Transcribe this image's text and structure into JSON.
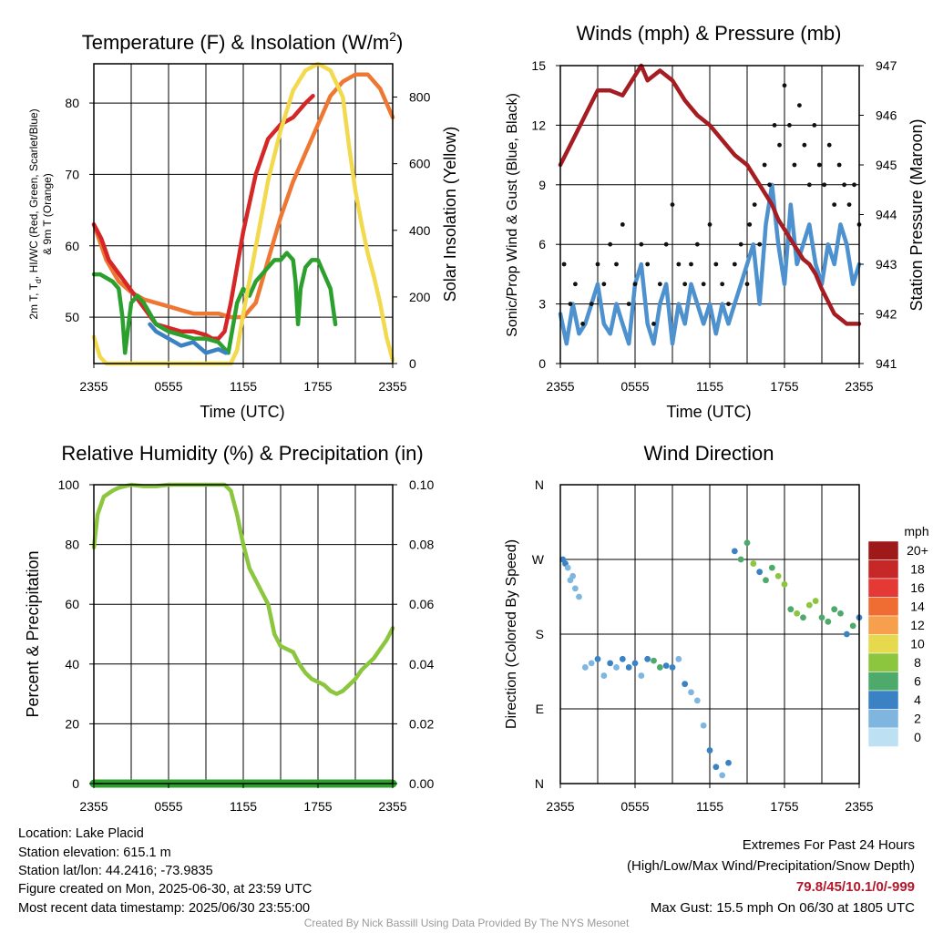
{
  "chart_data": [
    {
      "type": "line",
      "title_main": "Temperature (F) & Insolation (W/m",
      "title_sup": "2",
      "title_end": ")",
      "xlabel": "Time (UTC)",
      "ylabel_left_1": "2m T, T",
      "ylabel_left_sub": "d",
      "ylabel_left_2": ", HI/WC (Red, Green, Scarlet/Blue)",
      "ylabel_left_3": "& 9m T (Orange)",
      "ylabel_right": "Solar Insolation (Yellow)",
      "x_ticks": [
        "2355",
        "0555",
        "1155",
        "1755",
        "2355"
      ],
      "y_ticks": [
        "50",
        "60",
        "70",
        "80"
      ],
      "y_right_ticks": [
        "0",
        "200",
        "400",
        "600",
        "800"
      ],
      "ylim": [
        43.5,
        85.5
      ],
      "y_right_lim": [
        0,
        900
      ],
      "grid": true,
      "series": [
        {
          "color": "#ee7733",
          "x": [
            0,
            1,
            2,
            3,
            4,
            5,
            6,
            7,
            8,
            9,
            10,
            11,
            12,
            13,
            14,
            15,
            16,
            17,
            18,
            19,
            20,
            21,
            22,
            23,
            24
          ],
          "values": [
            63,
            58,
            55,
            53.5,
            52.5,
            52,
            51.5,
            51,
            50.5,
            50.5,
            50.5,
            50,
            50,
            52,
            58,
            64,
            69,
            73,
            77,
            81,
            83,
            84,
            84,
            82,
            78
          ]
        },
        {
          "color": "#d62728",
          "x": [
            0,
            0.6,
            1.2,
            5,
            6,
            7,
            8,
            9,
            9.5,
            10,
            10.5,
            11,
            12,
            13,
            14,
            15,
            16,
            17,
            17.6
          ],
          "values": [
            63,
            61,
            58,
            49,
            48.5,
            48,
            48,
            47.5,
            47,
            47,
            48,
            52,
            62,
            70,
            75,
            77,
            78,
            80,
            81
          ]
        },
        {
          "color": "#2ca02c",
          "x": [
            0,
            0.5,
            1,
            1.5,
            2,
            2.3,
            2.5,
            3,
            3.5,
            4,
            5,
            6,
            7,
            8,
            9,
            10,
            10.8,
            11,
            11.5,
            12,
            12.5,
            13,
            13.5,
            14,
            14.5,
            15,
            15.5,
            16,
            16.2,
            16.4,
            16.6,
            17,
            17.5,
            18,
            18.5,
            19,
            19.4
          ],
          "values": [
            56,
            56,
            55.5,
            55,
            54,
            50,
            45,
            52,
            53,
            52,
            49,
            48,
            47.5,
            47,
            47,
            46.5,
            45,
            47,
            52,
            54,
            53,
            55,
            56,
            57,
            58,
            58,
            59,
            58,
            55,
            49,
            54,
            57,
            58,
            58,
            56,
            54,
            49
          ]
        },
        {
          "color": "#3b82c4",
          "x": [
            4.5,
            5,
            6,
            7,
            8,
            9,
            10,
            10.6
          ],
          "values": [
            49,
            48,
            47,
            46,
            46.5,
            45,
            45.5,
            45
          ]
        },
        {
          "color": "#f2d94e",
          "axis": "right",
          "x": [
            0,
            0.5,
            1,
            2,
            3,
            4,
            5,
            6,
            7,
            8,
            9,
            10,
            11,
            11.5,
            12,
            13,
            14,
            15,
            16,
            17,
            18,
            19,
            20,
            20.5,
            21,
            21.5,
            22,
            22.5,
            23,
            23.5,
            24
          ],
          "values": [
            80,
            20,
            0,
            0,
            0,
            0,
            0,
            0,
            0,
            0,
            0,
            0,
            0,
            40,
            150,
            350,
            550,
            700,
            820,
            880,
            900,
            880,
            800,
            650,
            520,
            420,
            330,
            260,
            180,
            80,
            10
          ]
        }
      ]
    },
    {
      "type": "line",
      "title": "Winds (mph) & Pressure (mb)",
      "xlabel": "Time (UTC)",
      "ylabel_left": "Sonic/Prop Wind & Gust (Blue, Black)",
      "ylabel_right": "Station Pressure (Maroon)",
      "x_ticks": [
        "2355",
        "0555",
        "1155",
        "1755",
        "2355"
      ],
      "y_ticks": [
        "0",
        "3",
        "6",
        "9",
        "12",
        "15"
      ],
      "y_right_ticks": [
        "941",
        "942",
        "943",
        "944",
        "945",
        "946",
        "947"
      ],
      "ylim": [
        0,
        15
      ],
      "y_right_lim": [
        941,
        947
      ],
      "grid": true,
      "series": [
        {
          "color": "#4d91cf",
          "x": [
            0,
            0.5,
            1,
            1.5,
            2,
            2.5,
            3,
            3.5,
            4,
            4.5,
            5,
            5.5,
            6,
            6.5,
            7,
            7.5,
            8,
            8.5,
            9,
            9.5,
            10,
            10.5,
            11,
            11.5,
            12,
            12.5,
            13,
            13.5,
            14,
            14.5,
            15,
            15.5,
            16,
            16.5,
            17,
            17.5,
            18,
            18.5,
            19,
            19.5,
            20,
            20.5,
            21,
            21.5,
            22,
            22.5,
            23,
            23.5,
            24
          ],
          "values": [
            2.5,
            1,
            3,
            1.5,
            2,
            3,
            4,
            2,
            1.5,
            3,
            2,
            1,
            4,
            5,
            2,
            1,
            3,
            4,
            1,
            3,
            2,
            4,
            3,
            2,
            3,
            1.5,
            3,
            2,
            3,
            4,
            5,
            6,
            3,
            7,
            9,
            6,
            4,
            8,
            5,
            6,
            7,
            5,
            4,
            6,
            5,
            7,
            6,
            4,
            5
          ]
        },
        {
          "color": "#111111",
          "type": "scatter",
          "x": [
            0.3,
            0.8,
            1.2,
            1.8,
            2.5,
            3,
            3.5,
            4,
            4.5,
            5,
            5.5,
            6,
            6.5,
            7,
            7.5,
            8,
            8.5,
            9,
            9.5,
            10,
            10.5,
            11,
            11.5,
            12,
            12.5,
            13,
            13.5,
            14,
            14.5,
            15,
            15.2,
            15.6,
            16,
            16.4,
            16.8,
            17.2,
            17.6,
            18,
            18.4,
            18.8,
            19.2,
            19.6,
            20,
            20.4,
            20.8,
            21.2,
            21.6,
            22,
            22.4,
            22.8,
            23.2,
            23.6,
            24
          ],
          "values": [
            5,
            3,
            4,
            2,
            3,
            5,
            4,
            6,
            5,
            7,
            3,
            4,
            6,
            5,
            2,
            4,
            6,
            8,
            5,
            4,
            5,
            6,
            4,
            7,
            5,
            4,
            3,
            5,
            6,
            4,
            7,
            8,
            6,
            10,
            9,
            12,
            11,
            14,
            12,
            10,
            13,
            11,
            9,
            12,
            10,
            9,
            11,
            8,
            10,
            9,
            8,
            9,
            7
          ]
        },
        {
          "color": "#a51d22",
          "axis": "right",
          "x": [
            0,
            1,
            2,
            3,
            4,
            5,
            6,
            6.5,
            7,
            8,
            9,
            10,
            11,
            12,
            13,
            14,
            15,
            16,
            17,
            17.5,
            18,
            18.5,
            19,
            19.5,
            20,
            20.5,
            21,
            22,
            23,
            24
          ],
          "values": [
            945,
            945.5,
            946,
            946.5,
            946.5,
            946.4,
            946.8,
            947,
            946.7,
            946.9,
            946.7,
            946.3,
            946,
            945.8,
            945.5,
            945.2,
            945,
            944.6,
            944.2,
            943.9,
            943.7,
            943.5,
            943.3,
            943.1,
            943,
            942.8,
            942.5,
            942,
            941.8,
            941.8
          ]
        }
      ]
    },
    {
      "type": "line",
      "title": "Relative Humidity (%) & Precipitation (in)",
      "ylabel_left": "Percent & Precipitation",
      "x_ticks": [
        "2355",
        "0555",
        "1155",
        "1755",
        "2355"
      ],
      "y_ticks": [
        "0",
        "20",
        "40",
        "60",
        "80",
        "100"
      ],
      "y_right_ticks": [
        "0.00",
        "0.02",
        "0.04",
        "0.06",
        "0.08",
        "0.10"
      ],
      "ylim": [
        0,
        100
      ],
      "y_right_lim": [
        0,
        0.1
      ],
      "grid": true,
      "series": [
        {
          "color": "#8cc63f",
          "x": [
            0,
            0.3,
            0.8,
            1.5,
            2,
            3,
            4,
            5,
            6,
            7,
            8,
            9,
            10,
            10.5,
            11,
            11.5,
            12,
            12.5,
            13,
            13.5,
            14,
            14.5,
            15,
            15.5,
            16,
            16.5,
            17,
            17.5,
            18,
            18.5,
            19,
            19.5,
            20,
            20.5,
            21,
            21.5,
            22,
            22.5,
            23,
            23.5,
            24
          ],
          "values": [
            79,
            90,
            96,
            98,
            99,
            100,
            99.5,
            99.5,
            100,
            100,
            100,
            100,
            100,
            100,
            98,
            90,
            80,
            72,
            68,
            64,
            60,
            50,
            46,
            45,
            44,
            40,
            37,
            35,
            34,
            33,
            31,
            30,
            31,
            33,
            35,
            38,
            40,
            42,
            45,
            48,
            52
          ]
        },
        {
          "color": "#2ca02c",
          "axis": "right",
          "x": [
            0,
            24
          ],
          "values": [
            0,
            0
          ]
        }
      ]
    },
    {
      "type": "scatter",
      "title": "Wind Direction",
      "ylabel_left": "Direction (Colored By Speed)",
      "x_ticks": [
        "2355",
        "0555",
        "1155",
        "1755",
        "2355"
      ],
      "y_ticks": [
        "N",
        "E",
        "S",
        "W",
        "N"
      ],
      "ylim": [
        0,
        360
      ],
      "grid": true,
      "legend": {
        "title": "mph",
        "labels": [
          "20+",
          "18",
          "16",
          "14",
          "12",
          "10",
          "8",
          "6",
          "4",
          "2",
          "0"
        ],
        "colors": [
          "#9e1a1a",
          "#c62828",
          "#e53935",
          "#ef6c33",
          "#f6a04d",
          "#e6d94e",
          "#8cc63f",
          "#4daa6a",
          "#3b82c4",
          "#7fb6e0",
          "#bde0f3"
        ]
      },
      "series": [
        {
          "x": [
            0.2,
            0.4,
            0.6,
            0.8,
            1,
            1.2,
            1.5,
            2,
            2.5,
            3,
            3.5,
            4,
            4.5,
            5,
            5.5,
            6,
            6.5,
            7,
            7.5,
            8,
            8.5,
            9,
            9.5,
            10,
            10.5,
            11,
            11.5,
            12,
            12.5,
            13,
            13.5,
            14,
            14.5,
            15,
            15.5,
            16,
            16.5,
            17,
            17.5,
            18,
            18.5,
            19,
            19.5,
            20,
            20.5,
            21,
            21.5,
            22,
            22.5,
            23,
            23.5,
            24
          ],
          "values": [
            270,
            265,
            260,
            245,
            250,
            235,
            225,
            140,
            145,
            150,
            130,
            145,
            140,
            150,
            140,
            145,
            130,
            150,
            148,
            140,
            142,
            140,
            150,
            120,
            110,
            100,
            70,
            40,
            20,
            10,
            25,
            280,
            270,
            290,
            265,
            255,
            245,
            260,
            250,
            240,
            210,
            205,
            200,
            215,
            220,
            200,
            195,
            210,
            205,
            180,
            190,
            200
          ],
          "speeds": [
            4,
            3,
            2,
            2,
            2,
            1,
            1,
            2,
            2,
            3,
            2,
            3,
            2,
            3,
            4,
            3,
            2,
            4,
            5,
            6,
            3,
            4,
            2,
            3,
            2,
            2,
            2,
            3,
            4,
            2,
            3,
            4,
            5,
            6,
            7,
            4,
            5,
            6,
            7,
            8,
            6,
            7,
            6,
            8,
            7,
            6,
            5,
            6,
            5,
            4,
            5,
            4
          ]
        }
      ]
    }
  ],
  "info": {
    "location": "Location: Lake Placid",
    "elevation": "Station elevation: 615.1 m",
    "latlon": "Station lat/lon: 44.2416; -73.9835",
    "created": "Figure created on Mon, 2025-06-30, at 23:59 UTC",
    "recent": "Most recent data timestamp: 2025/06/30 23:55:00"
  },
  "extremes": {
    "heading": "Extremes For Past 24 Hours",
    "legend": "(High/Low/Max Wind/Precipitation/Snow Depth)",
    "values": "79.8/45/10.1/0/-999",
    "max_gust": "Max Gust: 15.5 mph On 06/30 at 1805 UTC"
  },
  "credit": "Created By Nick Bassill Using Data Provided By The NYS Mesonet"
}
